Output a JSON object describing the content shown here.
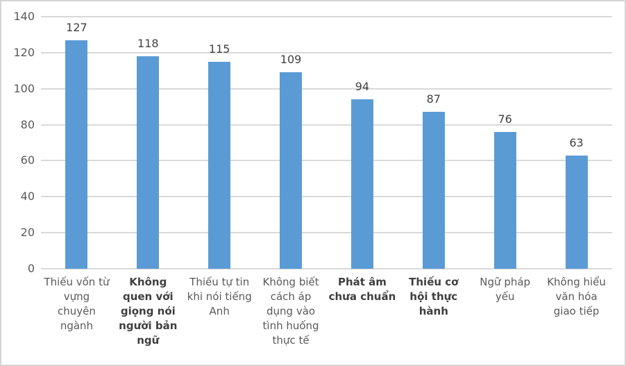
{
  "chart_data": {
    "type": "bar",
    "title": "",
    "xlabel": "",
    "ylabel": "",
    "categories": [
      "Thiếu vốn từ vựng chuyên ngành",
      "Không quen với giọng nói người bản ngữ",
      "Thiếu tự tin khi nói tiếng Anh",
      "Không biết cách áp dụng vào tình huống thực tế",
      "Phát âm chưa chuẩn",
      "Thiếu cơ hội thực hành",
      "Ngữ pháp yếu",
      "Không hiểu văn hóa giao tiếp"
    ],
    "values": [
      127,
      118,
      115,
      109,
      94,
      87,
      76,
      63
    ],
    "data_labels": [
      "127",
      "118",
      "115",
      "109",
      "94",
      "87",
      "76",
      "63"
    ],
    "bold_category_indexes": [
      1,
      4,
      5
    ],
    "ylim": [
      0,
      140
    ],
    "yticks": [
      0,
      20,
      40,
      60,
      80,
      100,
      120,
      140
    ],
    "grid": "horizontal",
    "legend": "none",
    "colors": {
      "bar": "#5B9BD5",
      "gridline": "#D9D9D9",
      "axis_text": "#595959",
      "data_label": "#404040",
      "category_text": "#595959",
      "category_bold_text": "#3F3F3F",
      "frame_border": "#D5D5D5",
      "background": "#FFFFFF"
    }
  }
}
